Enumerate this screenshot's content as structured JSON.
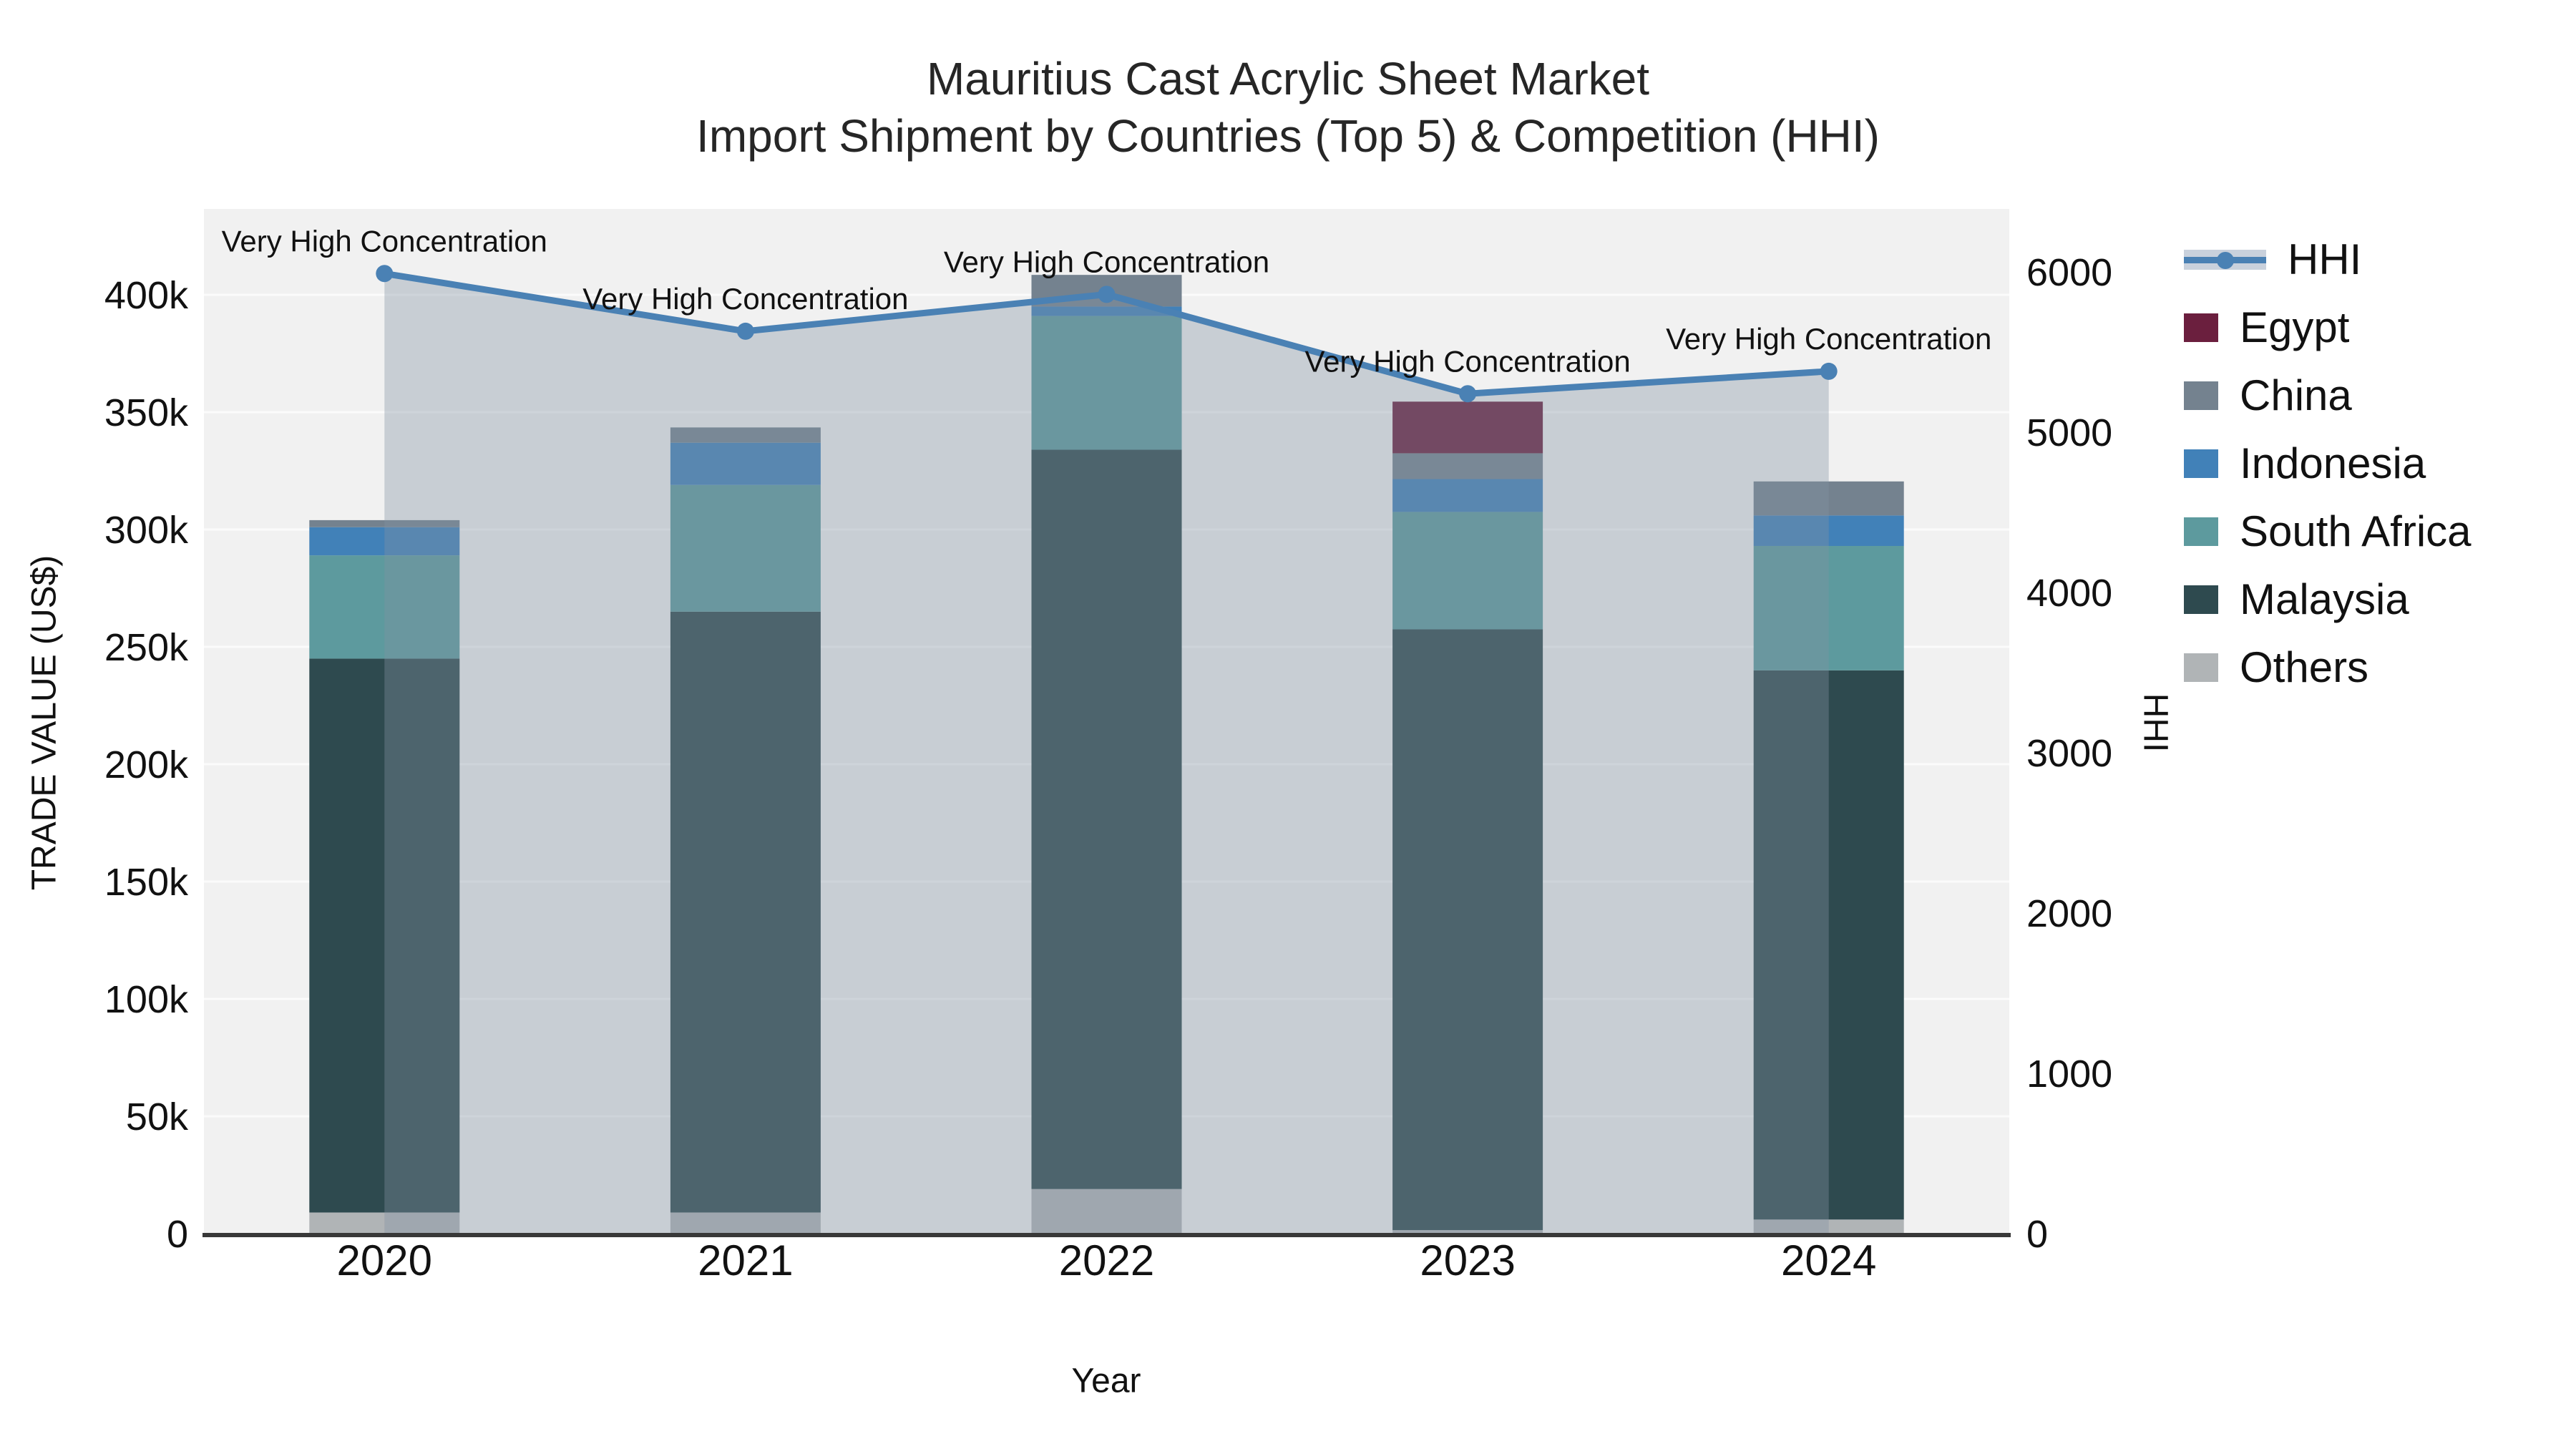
{
  "title": {
    "line1": "Mauritius Cast Acrylic Sheet Market",
    "line2": "Import Shipment by Countries (Top 5) & Competition (HHI)"
  },
  "axes": {
    "x_label": "Year",
    "y_left_label": "TRADE VALUE (US$)",
    "y_right_label": "HHI",
    "y_left_tick_labels": [
      "0",
      "50k",
      "100k",
      "150k",
      "200k",
      "250k",
      "300k",
      "350k",
      "400k"
    ],
    "y_right_tick_labels": [
      "0",
      "1000",
      "2000",
      "3000",
      "4000",
      "5000",
      "6000"
    ]
  },
  "chart_data": {
    "type": "bar",
    "subtype": "stacked-bars-with-dual-axis-line",
    "categories": [
      "2020",
      "2021",
      "2022",
      "2023",
      "2024"
    ],
    "bar_series": [
      {
        "name": "Others",
        "color": "#b0b4b6",
        "values": [
          9000,
          9000,
          19000,
          1500,
          6000
        ]
      },
      {
        "name": "Malaysia",
        "color": "#2e4a4f",
        "values": [
          236000,
          256000,
          315000,
          256000,
          234000
        ]
      },
      {
        "name": "South Africa",
        "color": "#5d9a9e",
        "values": [
          44000,
          54000,
          57000,
          50000,
          53000
        ]
      },
      {
        "name": "Indonesia",
        "color": "#4181b8",
        "values": [
          12000,
          18000,
          4000,
          14000,
          13000
        ]
      },
      {
        "name": "China",
        "color": "#74828f",
        "values": [
          3000,
          6500,
          13500,
          11000,
          14500
        ]
      },
      {
        "name": "Egypt",
        "color": "#6b1f3e",
        "values": [
          0,
          0,
          0,
          22000,
          0
        ]
      }
    ],
    "bar_totals": [
      304000,
      343500,
      408500,
      354500,
      320500
    ],
    "line_series": {
      "name": "HHI",
      "color": "#4a81b4",
      "area_fill": "rgba(130,147,163,0.37)",
      "values": [
        5990,
        5630,
        5860,
        5240,
        5380
      ]
    },
    "annotations": [
      "Very High Concentration",
      "Very High Concentration",
      "Very High Concentration",
      "Very High Concentration",
      "Very High Concentration"
    ],
    "ylim_left": [
      0,
      436600
    ],
    "ylim_right": [
      0,
      6393
    ],
    "y_left_tick_step": 50000,
    "y_right_tick_step": 1000,
    "grid": "horizontal-50k-lines",
    "legend_order": [
      "HHI",
      "Egypt",
      "China",
      "Indonesia",
      "South Africa",
      "Malaysia",
      "Others"
    ],
    "legend_position": "right-outside"
  }
}
